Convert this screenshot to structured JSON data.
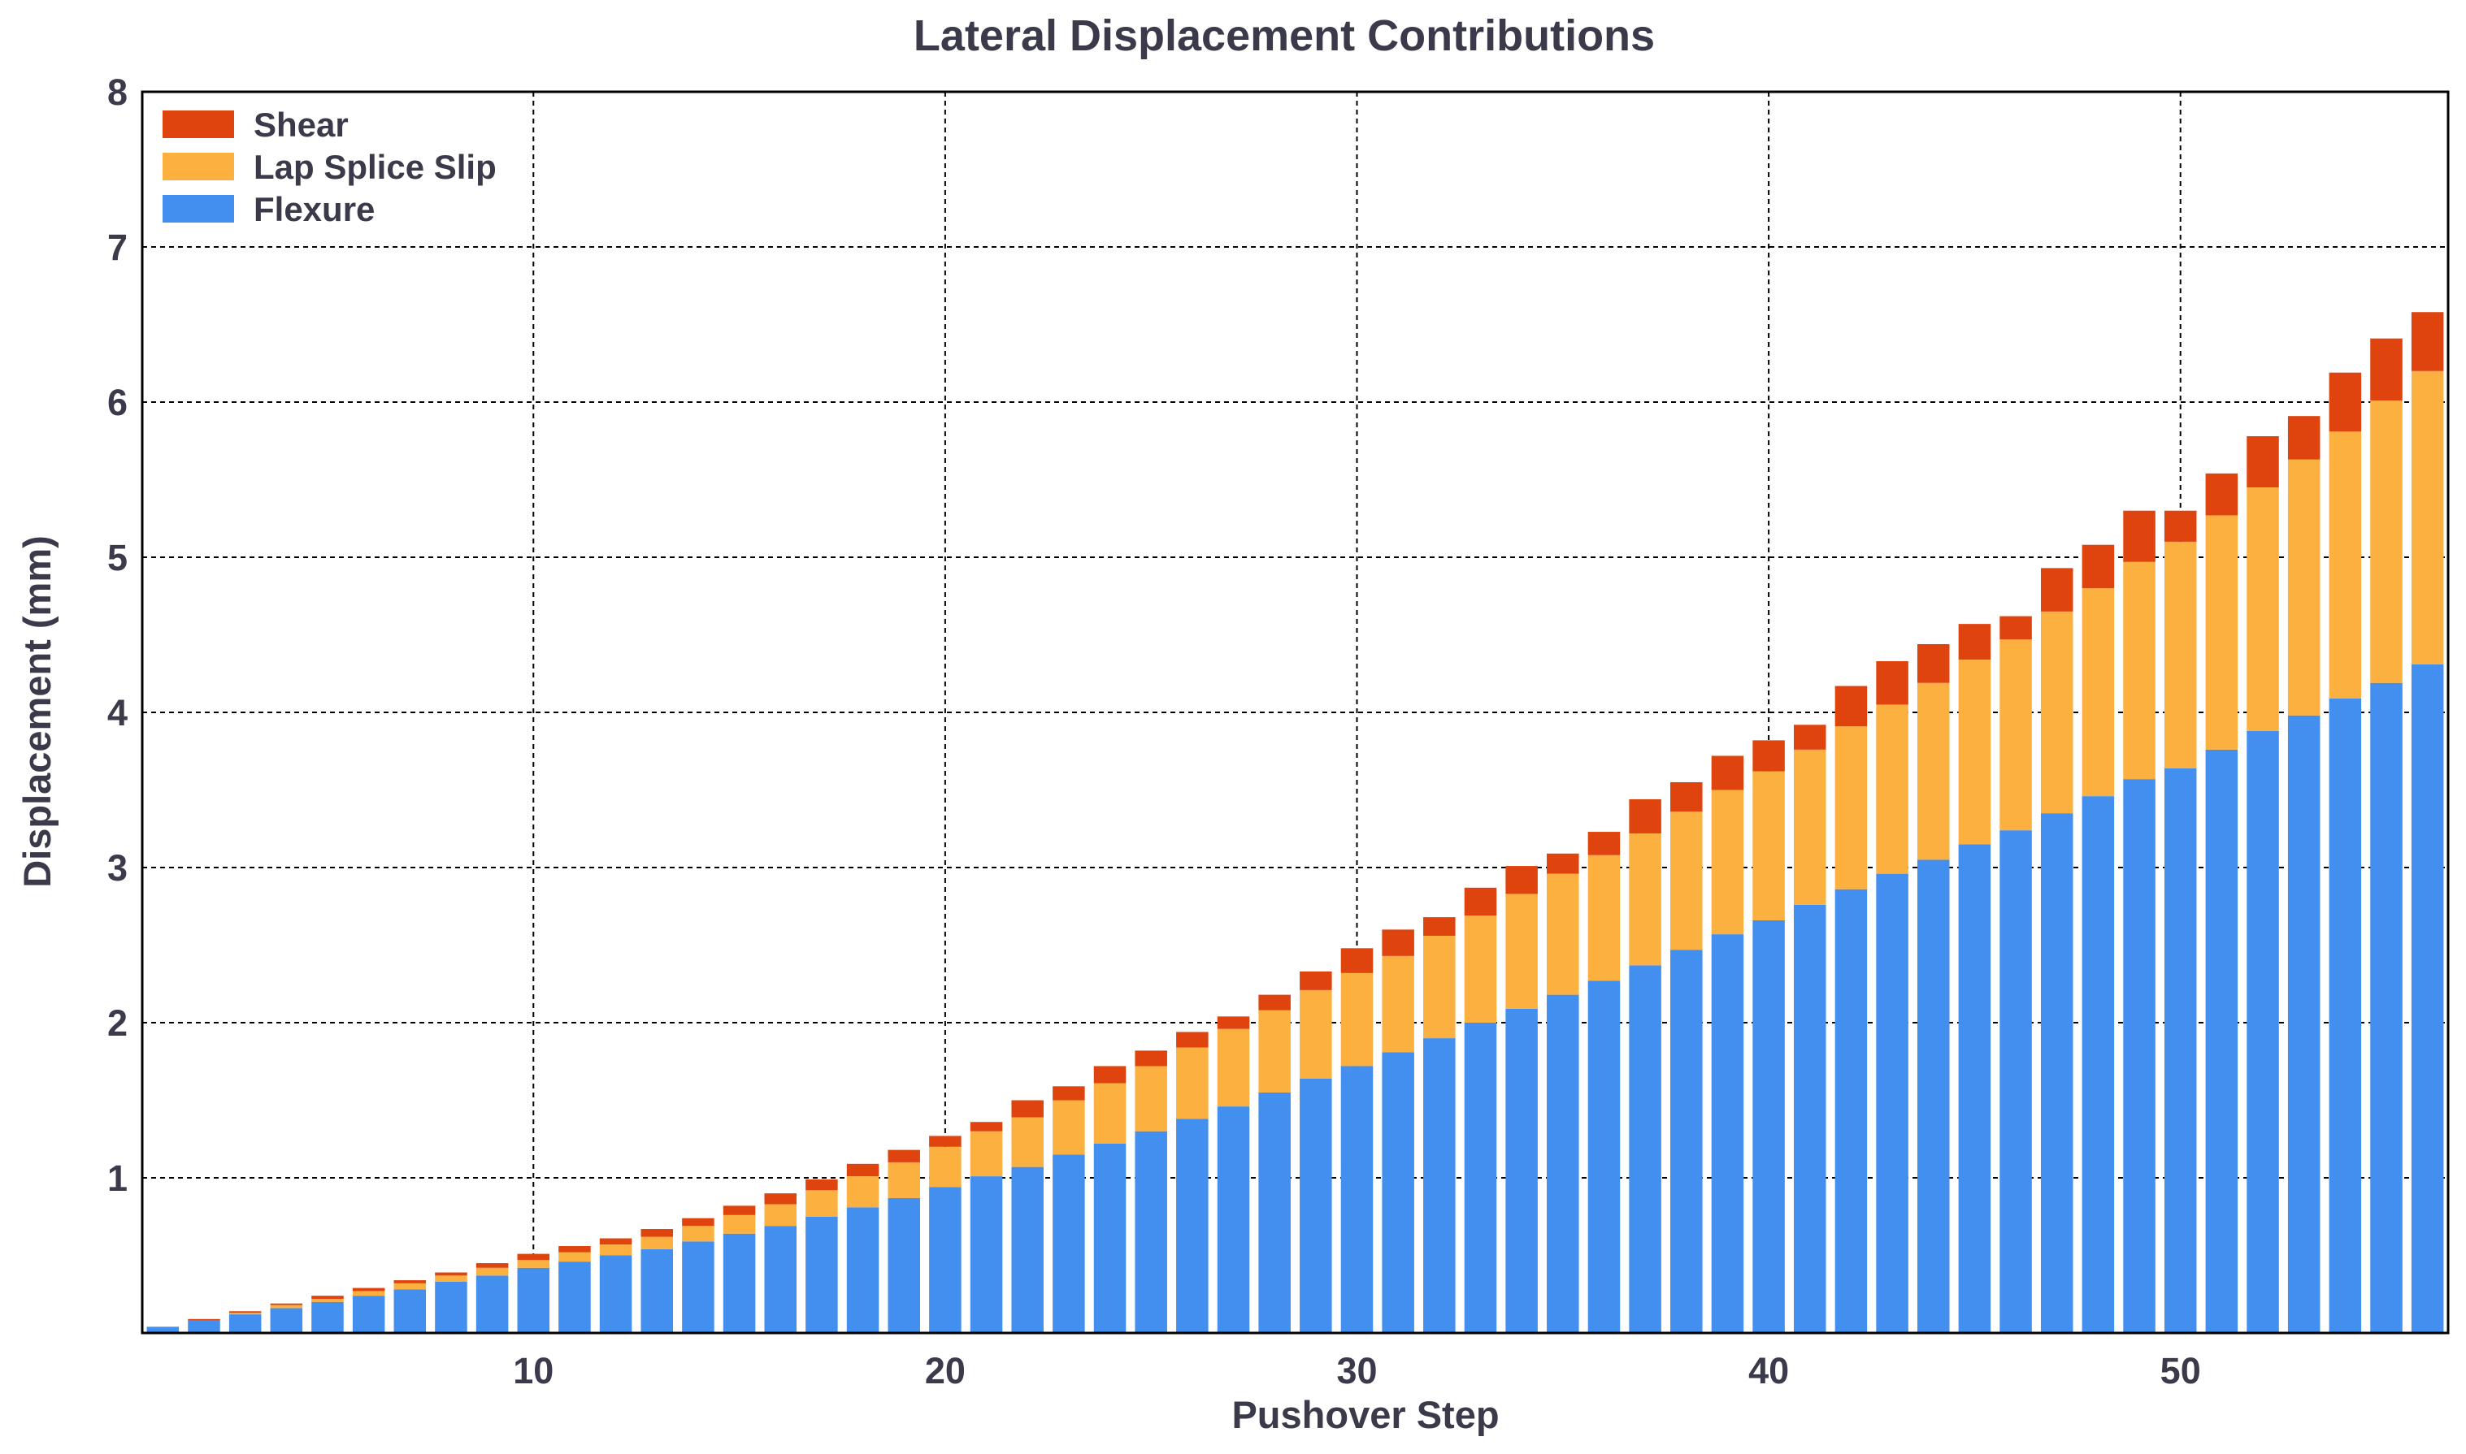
{
  "chart_data": {
    "type": "bar",
    "stacked": true,
    "title": "Lateral Displacement Contributions",
    "xlabel": "Pushover Step",
    "ylabel": "Displacement (mm)",
    "xlim": [
      0.5,
      56.5
    ],
    "ylim": [
      0,
      8
    ],
    "x_ticks": [
      10,
      20,
      30,
      40,
      50
    ],
    "y_ticks": [
      1,
      2,
      3,
      4,
      5,
      6,
      7,
      8
    ],
    "grid": true,
    "legend_position": "top-left",
    "categories": [
      1,
      2,
      3,
      4,
      5,
      6,
      7,
      8,
      9,
      10,
      11,
      12,
      13,
      14,
      15,
      16,
      17,
      18,
      19,
      20,
      21,
      22,
      23,
      24,
      25,
      26,
      27,
      28,
      29,
      30,
      31,
      32,
      33,
      34,
      35,
      36,
      37,
      38,
      39,
      40,
      41,
      42,
      43,
      44,
      45,
      46,
      47,
      48,
      49,
      50,
      51,
      52,
      53,
      54,
      55,
      56
    ],
    "series": [
      {
        "name": "Flexure",
        "color": "#428ff0",
        "values": [
          0.04,
          0.08,
          0.12,
          0.16,
          0.2,
          0.24,
          0.28,
          0.33,
          0.37,
          0.42,
          0.46,
          0.5,
          0.54,
          0.59,
          0.64,
          0.69,
          0.75,
          0.81,
          0.87,
          0.94,
          1.01,
          1.07,
          1.15,
          1.22,
          1.3,
          1.38,
          1.46,
          1.55,
          1.64,
          1.72,
          1.81,
          1.9,
          2.0,
          2.09,
          2.18,
          2.27,
          2.37,
          2.47,
          2.57,
          2.66,
          2.76,
          2.86,
          2.96,
          3.05,
          3.15,
          3.24,
          3.35,
          3.46,
          3.57,
          3.64,
          3.76,
          3.88,
          3.98,
          4.09,
          4.19,
          4.31
        ]
      },
      {
        "name": "Lap Splice Slip",
        "color": "#fbb040",
        "values": [
          0.0,
          0.0,
          0.01,
          0.02,
          0.02,
          0.03,
          0.04,
          0.04,
          0.05,
          0.05,
          0.06,
          0.07,
          0.08,
          0.1,
          0.12,
          0.14,
          0.17,
          0.2,
          0.23,
          0.26,
          0.29,
          0.32,
          0.35,
          0.39,
          0.42,
          0.46,
          0.5,
          0.53,
          0.57,
          0.6,
          0.62,
          0.66,
          0.69,
          0.74,
          0.78,
          0.81,
          0.85,
          0.89,
          0.93,
          0.96,
          1.0,
          1.05,
          1.09,
          1.14,
          1.19,
          1.23,
          1.3,
          1.34,
          1.4,
          1.46,
          1.51,
          1.57,
          1.65,
          1.72,
          1.82,
          1.89
        ]
      },
      {
        "name": "Shear",
        "color": "#e0440e",
        "values": [
          0.0,
          0.01,
          0.01,
          0.01,
          0.02,
          0.02,
          0.02,
          0.02,
          0.03,
          0.04,
          0.04,
          0.04,
          0.05,
          0.05,
          0.06,
          0.07,
          0.07,
          0.08,
          0.08,
          0.07,
          0.06,
          0.11,
          0.09,
          0.11,
          0.1,
          0.1,
          0.08,
          0.1,
          0.12,
          0.16,
          0.17,
          0.12,
          0.18,
          0.18,
          0.13,
          0.15,
          0.22,
          0.19,
          0.22,
          0.2,
          0.16,
          0.26,
          0.28,
          0.25,
          0.23,
          0.15,
          0.28,
          0.28,
          0.33,
          0.2,
          0.27,
          0.33,
          0.28,
          0.38,
          0.4,
          0.38
        ]
      }
    ]
  },
  "legend": {
    "items": [
      {
        "label": "Shear",
        "color": "#e0440e"
      },
      {
        "label": "Lap Splice Slip",
        "color": "#fbb040"
      },
      {
        "label": "Flexure",
        "color": "#428ff0"
      }
    ]
  }
}
